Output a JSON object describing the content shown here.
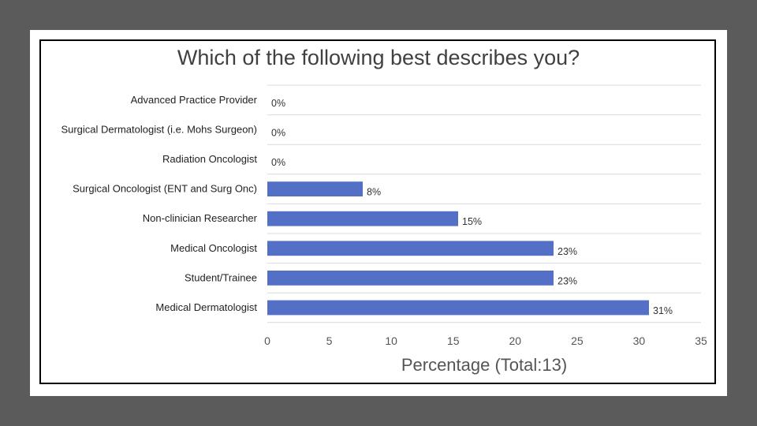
{
  "chart_data": {
    "type": "bar",
    "orientation": "horizontal",
    "title": "Which of the following best describes you?",
    "xlabel": "Percentage (Total:13)",
    "ylabel": "",
    "categories": [
      "Advanced Practice Provider",
      "Surgical Dermatologist (i.e. Mohs Surgeon)",
      "Radiation Oncologist",
      "Surgical Oncologist (ENT and Surg Onc)",
      "Non-clinician Researcher",
      "Medical Oncologist",
      "Student/Trainee",
      "Medical Dermatologist"
    ],
    "values": [
      0,
      0,
      0,
      7.7,
      15.4,
      23.1,
      23.1,
      30.8
    ],
    "data_labels": [
      "0%",
      "0%",
      "0%",
      "8%",
      "15%",
      "23%",
      "23%",
      "31%"
    ],
    "xlim": [
      0,
      35
    ],
    "xticks": [
      "0",
      "5",
      "10",
      "15",
      "20",
      "25",
      "30",
      "35"
    ],
    "grid": "horizontal",
    "bar_color": "#5470c6",
    "grid_color": "#d9d9d9"
  }
}
